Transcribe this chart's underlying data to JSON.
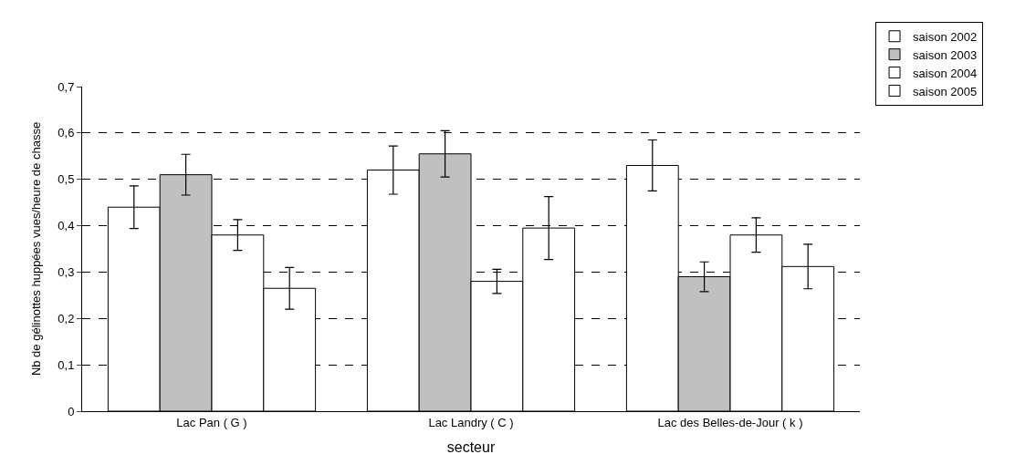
{
  "chart_data": {
    "type": "bar",
    "xlabel": "secteur",
    "ylabel": "Nb de gélinottes huppées vues/heure de chasse",
    "categories": [
      "Lac Pan ( G )",
      "Lac Landry ( C )",
      "Lac des Belles-de-Jour ( k )"
    ],
    "series": [
      {
        "name": "saison 2002",
        "color": "#ffffff",
        "values": [
          0.44,
          0.52,
          0.53
        ],
        "errors": [
          0.046,
          0.052,
          0.055
        ]
      },
      {
        "name": "saison 2003",
        "color": "#c0c0c0",
        "values": [
          0.51,
          0.555,
          0.29
        ],
        "errors": [
          0.044,
          0.05,
          0.032
        ]
      },
      {
        "name": "saison 2004",
        "color": "#ffffff",
        "values": [
          0.38,
          0.28,
          0.38
        ],
        "errors": [
          0.033,
          0.026,
          0.037
        ]
      },
      {
        "name": "saison 2005",
        "color": "#ffffff",
        "values": [
          0.265,
          0.395,
          0.312
        ],
        "errors": [
          0.045,
          0.068,
          0.048
        ]
      }
    ],
    "ylim": [
      0,
      0.7
    ],
    "yticks": [
      {
        "value": 0,
        "label": "0"
      },
      {
        "value": 0.1,
        "label": "0,1"
      },
      {
        "value": 0.2,
        "label": "0,2"
      },
      {
        "value": 0.3,
        "label": "0,3"
      },
      {
        "value": 0.4,
        "label": "0,4"
      },
      {
        "value": 0.5,
        "label": "0,5"
      },
      {
        "value": 0.6,
        "label": "0,6"
      },
      {
        "value": 0.7,
        "label": "0,7"
      }
    ],
    "grid": "y",
    "legend": "top right"
  }
}
